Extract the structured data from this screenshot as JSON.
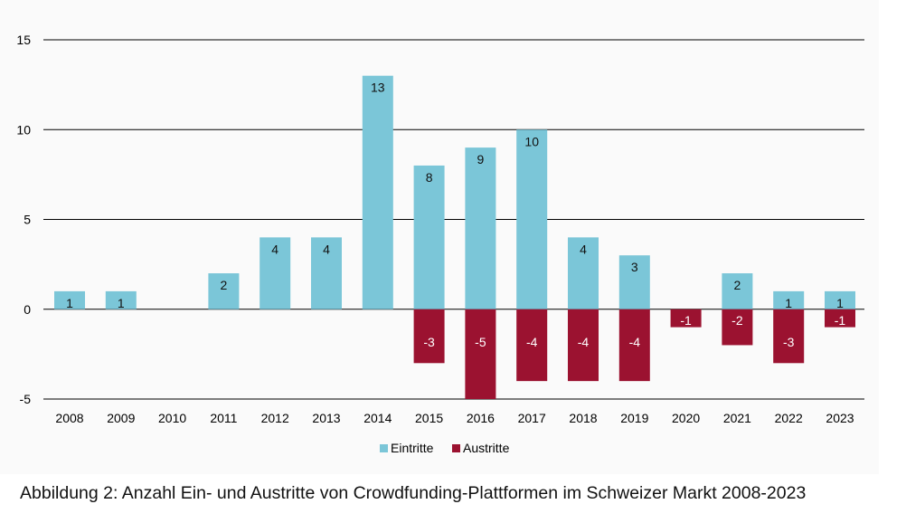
{
  "chart_data": {
    "type": "bar",
    "categories": [
      "2008",
      "2009",
      "2010",
      "2011",
      "2012",
      "2013",
      "2014",
      "2015",
      "2016",
      "2017",
      "2018",
      "2019",
      "2020",
      "2021",
      "2022",
      "2023"
    ],
    "series": [
      {
        "name": "Eintritte",
        "color": "#7bc6d8",
        "values": [
          1,
          1,
          0,
          2,
          4,
          4,
          13,
          8,
          9,
          10,
          4,
          3,
          0,
          2,
          1,
          1
        ]
      },
      {
        "name": "Austritte",
        "color": "#9b1230",
        "values": [
          0,
          0,
          0,
          0,
          0,
          0,
          0,
          -3,
          -5,
          -4,
          -4,
          -4,
          -1,
          -2,
          -3,
          -1
        ]
      }
    ],
    "ylim": [
      -5,
      15
    ],
    "yticks": [
      "-5",
      "0",
      "5",
      "10",
      "15"
    ],
    "grid": true,
    "legend_position": "bottom-center",
    "stacked": true
  },
  "caption": "Abbildung 2: Anzahl Ein- und Austritte von Crowdfunding-Plattformen im Schweizer Markt 2008-2023"
}
